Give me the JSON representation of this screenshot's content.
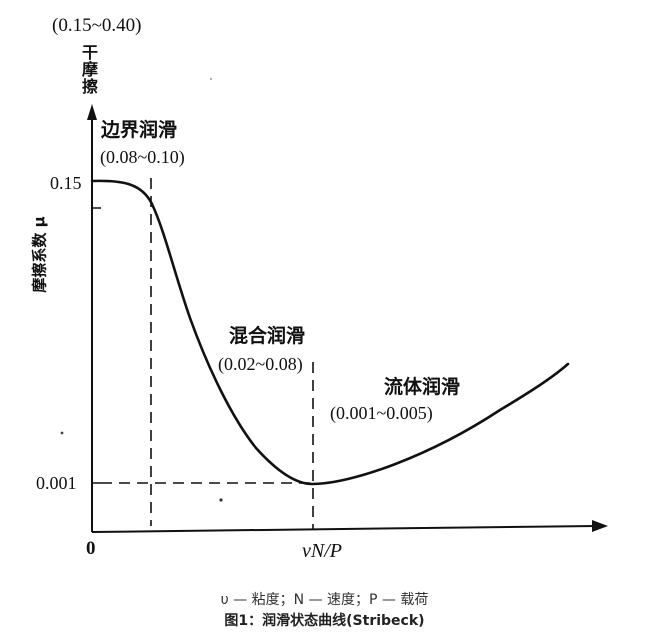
{
  "diagram": {
    "top_range": "(0.15~0.40)",
    "dry_friction": "干摩擦",
    "y_axis_label": "摩擦系数 μ",
    "x_axis_label": "νN/P",
    "origin": "0",
    "y_tick_high": "0.15",
    "y_tick_low": "0.001",
    "regions": [
      {
        "name": "边界润滑",
        "range": "(0.08~0.10)"
      },
      {
        "name": "混合润滑",
        "range": "(0.02~0.08)"
      },
      {
        "name": "流体润滑",
        "range": "(0.001~0.005)"
      }
    ]
  },
  "caption": {
    "legend": "υ — 粘度；N — 速度；P — 载荷",
    "title": "图1：润滑状态曲线(Stribeck)"
  },
  "colors": {
    "ink": "#111111",
    "caption": "#333333"
  }
}
